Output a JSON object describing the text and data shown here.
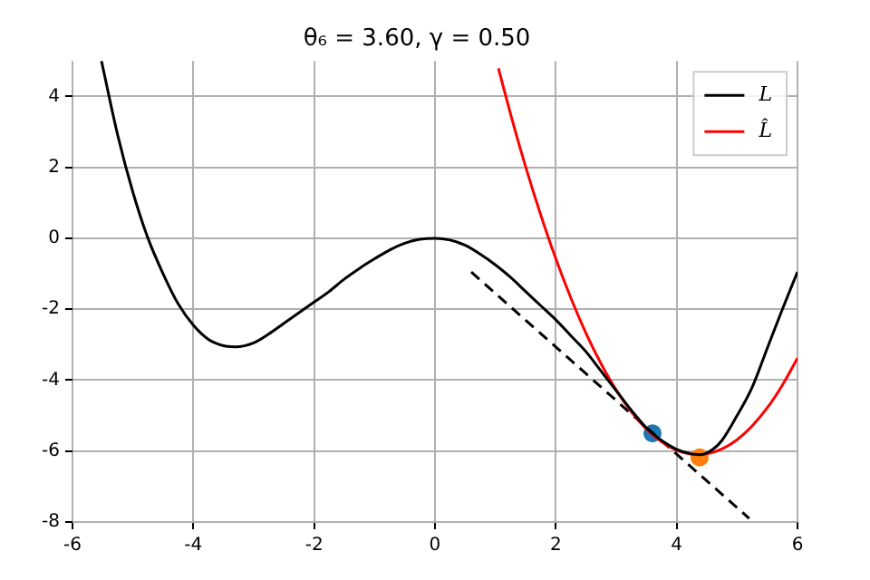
{
  "chart_data": {
    "type": "line",
    "title": "θ₆ = 3.60, γ = 0.50",
    "xlim": [
      -6,
      6
    ],
    "xticks": [
      -6,
      -4,
      -2,
      0,
      2,
      4,
      6
    ],
    "ylim": [
      -8,
      5
    ],
    "yticks": [
      -8,
      -6,
      -4,
      -2,
      0,
      2,
      4
    ],
    "grid": true,
    "legend": "top right",
    "series": [
      {
        "name": "L",
        "color": "#000000",
        "type": "line",
        "line_style": "solid",
        "marker": "none",
        "x": [
          -5.52,
          -5.25,
          -5,
          -4.75,
          -4.5,
          -4.25,
          -4,
          -3.75,
          -3.5,
          -3.3,
          -3,
          -2.75,
          -2.5,
          -2.25,
          -2,
          -1.75,
          -1.5,
          -1.25,
          -1,
          -0.75,
          -0.5,
          -0.25,
          0,
          0.25,
          0.5,
          0.75,
          1,
          1.25,
          1.5,
          1.75,
          2,
          2.25,
          2.5,
          2.75,
          3,
          3.25,
          3.5,
          3.6,
          3.75,
          4,
          4.25,
          4.4,
          4.6,
          4.75,
          5,
          5.25,
          5.5,
          5.75,
          6
        ],
        "values": [
          5,
          2.9,
          1.3,
          0.0,
          -1.0,
          -1.85,
          -2.45,
          -2.85,
          -3.03,
          -3.06,
          -2.95,
          -2.7,
          -2.4,
          -2.1,
          -1.8,
          -1.5,
          -1.15,
          -0.85,
          -0.58,
          -0.33,
          -0.14,
          -0.03,
          0,
          -0.05,
          -0.2,
          -0.45,
          -0.75,
          -1.1,
          -1.5,
          -1.9,
          -2.3,
          -2.75,
          -3.2,
          -3.75,
          -4.3,
          -4.85,
          -5.35,
          -5.5,
          -5.7,
          -5.95,
          -6.08,
          -6.1,
          -5.95,
          -5.7,
          -5.0,
          -4.2,
          -3.1,
          -2.0,
          -0.95
        ]
      },
      {
        "name": "L̂",
        "color": "#ff0000",
        "type": "line",
        "line_style": "solid",
        "marker": "none",
        "x": [
          1.05,
          1.25,
          1.5,
          1.75,
          2,
          2.25,
          2.5,
          2.75,
          3,
          3.25,
          3.5,
          3.75,
          4,
          4.25,
          4.35,
          4.5,
          4.75,
          5,
          5.25,
          5.5,
          5.75,
          6
        ],
        "values": [
          4.79,
          3.51,
          2.02,
          0.66,
          -0.58,
          -1.69,
          -2.68,
          -3.54,
          -4.28,
          -4.89,
          -5.38,
          -5.74,
          -5.98,
          -6.09,
          -6.1,
          -6.08,
          -5.94,
          -5.68,
          -5.29,
          -4.78,
          -4.14,
          -3.38
        ]
      },
      {
        "color": "#000000",
        "type": "line",
        "line_style": "dashed",
        "marker": "none",
        "x": [
          0.6,
          5.2
        ],
        "values": [
          -0.95,
          -7.9
        ]
      },
      {
        "color": "#1f77b4",
        "type": "scatter",
        "marker": "circle",
        "x": [
          3.6
        ],
        "values": [
          -5.5
        ]
      },
      {
        "color": "#ff7f0e",
        "type": "scatter",
        "marker": "circle",
        "x": [
          4.38
        ],
        "values": [
          -6.18
        ]
      }
    ]
  }
}
